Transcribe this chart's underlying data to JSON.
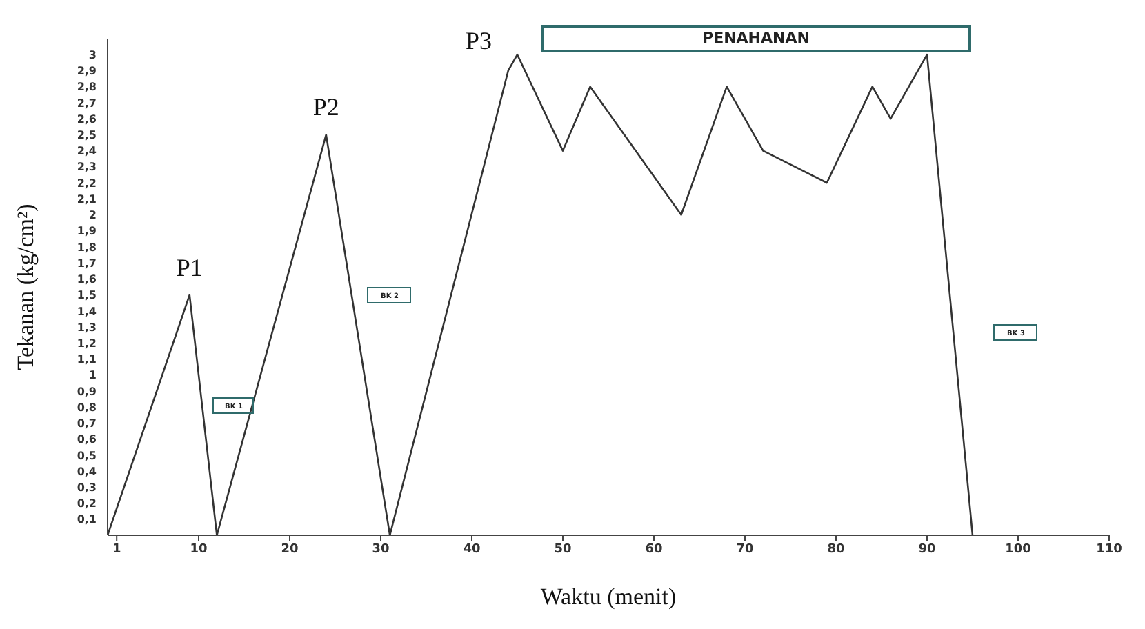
{
  "chart_data": {
    "type": "line",
    "xlabel": "Waktu (menit)",
    "ylabel": "Tekanan (kg/cm²)",
    "x": [
      0,
      9,
      12,
      24,
      31,
      44,
      45,
      50,
      53,
      63,
      68,
      72,
      79,
      84,
      86,
      90,
      95
    ],
    "series": [
      {
        "color": "#333333",
        "values": [
          0,
          1.5,
          0,
          2.5,
          0,
          2.9,
          3,
          2.4,
          2.8,
          2,
          2.8,
          2.4,
          2.2,
          2.8,
          2.6,
          3,
          0
        ]
      }
    ],
    "xlim": [
      0,
      110
    ],
    "xticks": [
      1,
      10,
      20,
      30,
      40,
      50,
      60,
      70,
      80,
      90,
      100,
      110
    ],
    "ylim": [
      0,
      3.1
    ],
    "yticks": [
      {
        "value": 0.1,
        "label": "0,1"
      },
      {
        "value": 0.2,
        "label": "0,2"
      },
      {
        "value": 0.3,
        "label": "0,3"
      },
      {
        "value": 0.4,
        "label": "0,4"
      },
      {
        "value": 0.5,
        "label": "0,5"
      },
      {
        "value": 0.6,
        "label": "0,6"
      },
      {
        "value": 0.7,
        "label": "0,7"
      },
      {
        "value": 0.8,
        "label": "0,8"
      },
      {
        "value": 0.9,
        "label": "0,9"
      },
      1,
      {
        "value": 1.1,
        "label": "1,1"
      },
      {
        "value": 1.2,
        "label": "1,2"
      },
      {
        "value": 1.3,
        "label": "1,3"
      },
      {
        "value": 1.4,
        "label": "1,4"
      },
      {
        "value": 1.5,
        "label": "1,5"
      },
      {
        "value": 1.6,
        "label": "1,6"
      },
      {
        "value": 1.7,
        "label": "1,7"
      },
      {
        "value": 1.8,
        "label": "1,8"
      },
      {
        "value": 1.9,
        "label": "1,9"
      },
      2,
      {
        "value": 2.1,
        "label": "2,1"
      },
      {
        "value": 2.2,
        "label": "2,2"
      },
      {
        "value": 2.3,
        "label": "2,3"
      },
      {
        "value": 2.4,
        "label": "2,4"
      },
      {
        "value": 2.5,
        "label": "2,5"
      },
      {
        "value": 2.6,
        "label": "2,6"
      },
      {
        "value": 2.7,
        "label": "2,7"
      },
      {
        "value": 2.8,
        "label": "2,8"
      },
      {
        "value": 2.9,
        "label": "2,9"
      },
      3
    ],
    "marker": "none",
    "line_style": "solid",
    "annotations": [
      {
        "text": "P1",
        "x": 9,
        "y": 1.5
      },
      {
        "text": "P2",
        "x": 24,
        "y": 2.5
      },
      {
        "text": "P3",
        "x": 45,
        "y": 3
      },
      "PENAHANAN",
      "BK 1",
      "BK 2",
      "BK 3"
    ]
  }
}
